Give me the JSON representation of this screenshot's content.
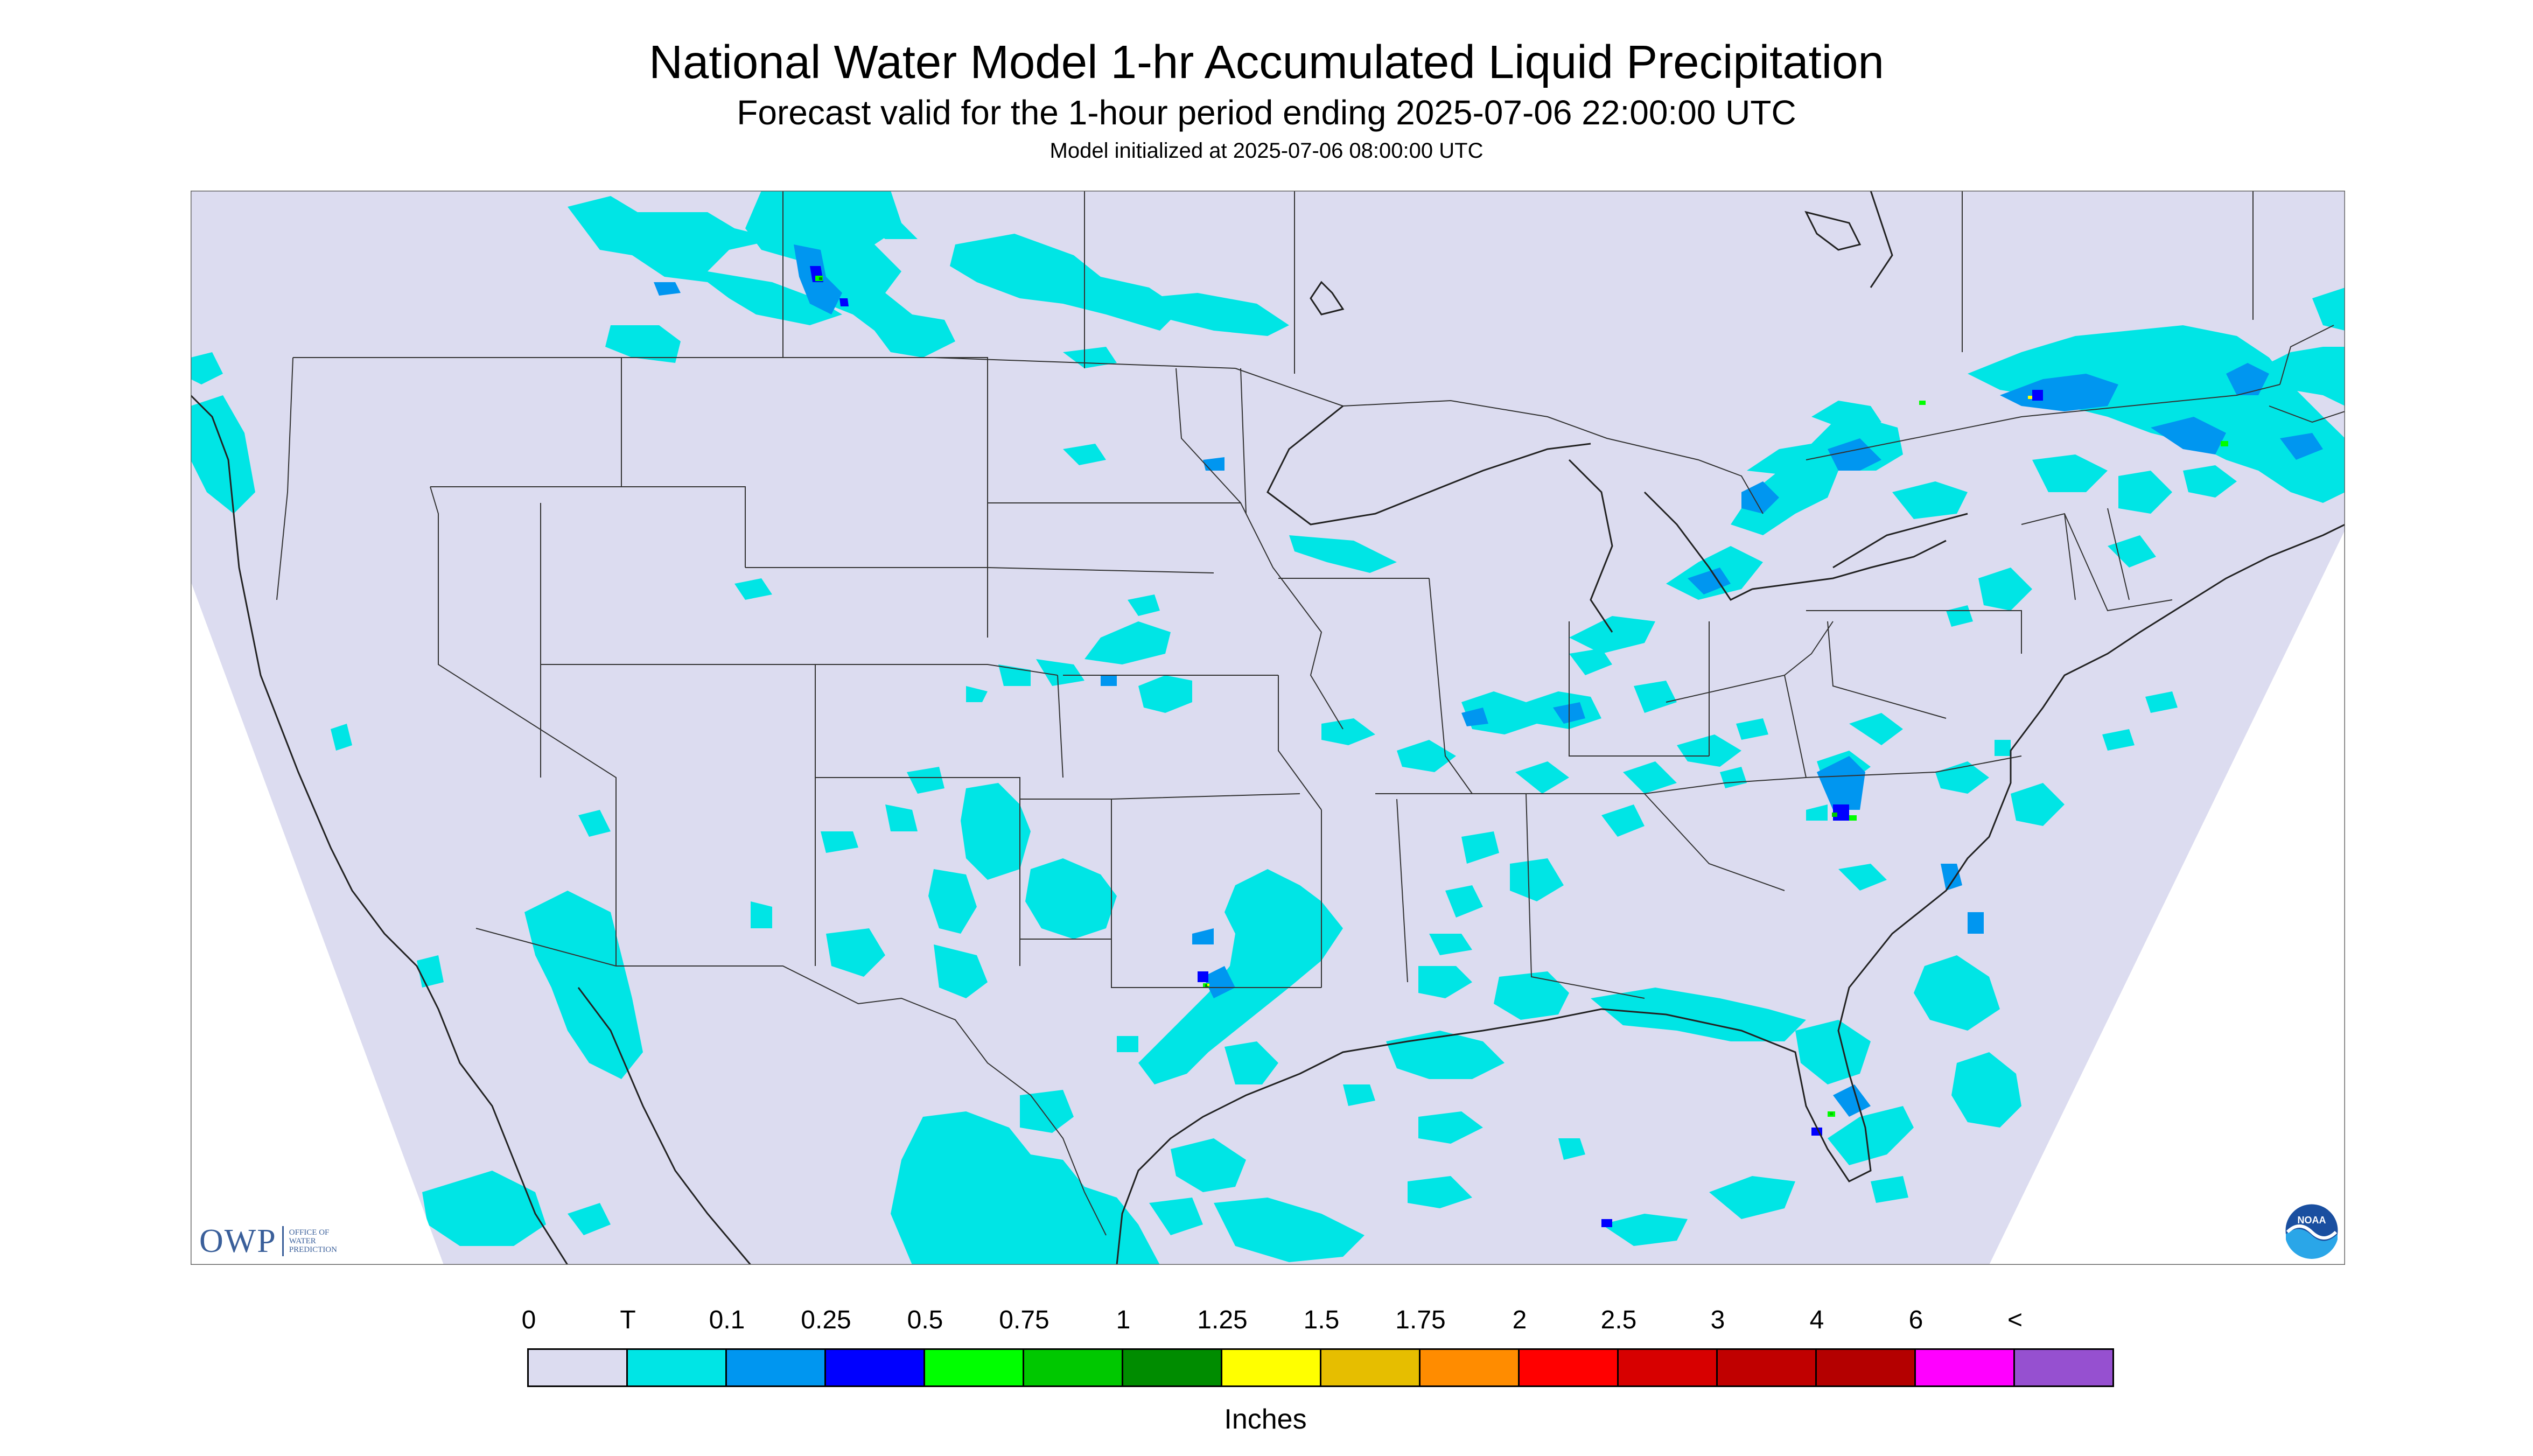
{
  "header": {
    "title": "National Water Model 1-hr Accumulated Liquid Precipitation",
    "subtitle": "Forecast valid for the 1-hour period ending 2025-07-06 22:00:00 UTC",
    "init_line": "Model initialized at 2025-07-06 08:00:00 UTC"
  },
  "colors": {
    "map_background": "#dcdcf0",
    "outside_domain": "#ffffff",
    "boundaries": "#333333",
    "trace": "#00e5e5"
  },
  "legend": {
    "units": "Inches",
    "labels": [
      "0",
      "T",
      "0.1",
      "0.25",
      "0.5",
      "0.75",
      "1",
      "1.25",
      "1.5",
      "1.75",
      "2",
      "2.5",
      "3",
      "4",
      "6",
      "<"
    ],
    "colors": [
      "#dcdcf0",
      "#00e5e5",
      "#0096f0",
      "#0000ff",
      "#00ff00",
      "#00c800",
      "#008c00",
      "#ffff00",
      "#e6be00",
      "#ff8c00",
      "#ff0000",
      "#d70000",
      "#c00000",
      "#b40000",
      "#ff00ff",
      "#9650d0"
    ]
  },
  "logos": {
    "owp_mark": "OWP",
    "owp_subtitle": [
      "OFFICE OF",
      "WATER",
      "PREDICTION"
    ],
    "noaa_text": "NOAA"
  }
}
